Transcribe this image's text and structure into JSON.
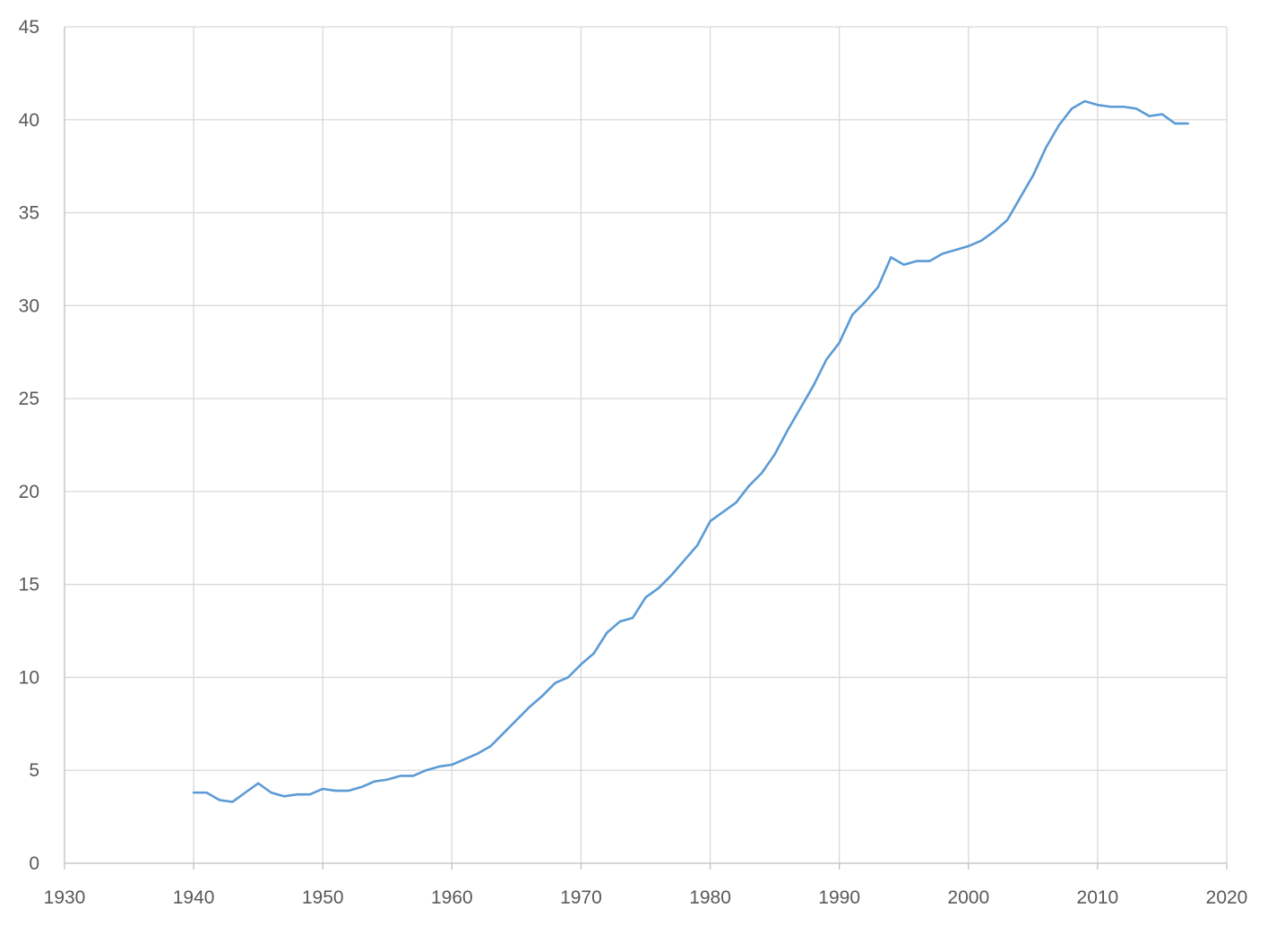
{
  "chart_data": {
    "type": "line",
    "title": "",
    "xlabel": "",
    "ylabel": "",
    "xlim": [
      1930,
      2020
    ],
    "ylim": [
      0,
      45
    ],
    "xticks": [
      1930,
      1940,
      1950,
      1960,
      1970,
      1980,
      1990,
      2000,
      2010,
      2020
    ],
    "yticks": [
      0,
      5,
      10,
      15,
      20,
      25,
      30,
      35,
      40,
      45
    ],
    "grid": true,
    "legend": "none",
    "series": [
      {
        "color": "#5b9bd5",
        "x": [
          1940,
          1941,
          1942,
          1943,
          1944,
          1945,
          1946,
          1947,
          1948,
          1949,
          1950,
          1951,
          1952,
          1953,
          1954,
          1955,
          1956,
          1957,
          1958,
          1959,
          1960,
          1961,
          1962,
          1963,
          1964,
          1965,
          1966,
          1967,
          1968,
          1969,
          1970,
          1971,
          1972,
          1973,
          1974,
          1975,
          1976,
          1977,
          1978,
          1979,
          1980,
          1981,
          1982,
          1983,
          1984,
          1985,
          1986,
          1987,
          1988,
          1989,
          1990,
          1991,
          1992,
          1993,
          1994,
          1995,
          1996,
          1997,
          1998,
          1999,
          2000,
          2001,
          2002,
          2003,
          2004,
          2005,
          2006,
          2007,
          2008,
          2009,
          2010,
          2011,
          2012,
          2013,
          2014,
          2015,
          2016,
          2017
        ],
        "y": [
          3.8,
          3.8,
          3.4,
          3.3,
          3.8,
          4.3,
          3.8,
          3.6,
          3.7,
          3.7,
          4.0,
          3.9,
          3.9,
          4.1,
          4.4,
          4.5,
          4.7,
          4.7,
          5.0,
          5.2,
          5.3,
          5.6,
          5.9,
          6.3,
          7.0,
          7.7,
          8.4,
          9.0,
          9.7,
          10.0,
          10.7,
          11.3,
          12.4,
          13.0,
          13.2,
          14.3,
          14.8,
          15.5,
          16.3,
          17.1,
          18.4,
          18.9,
          19.4,
          20.3,
          21.0,
          22.0,
          23.3,
          24.5,
          25.7,
          27.1,
          28.0,
          29.5,
          30.2,
          31.0,
          32.6,
          32.2,
          32.4,
          32.4,
          32.8,
          33.0,
          33.2,
          33.5,
          34.0,
          34.6,
          35.8,
          37.0,
          38.5,
          39.7,
          40.6,
          41.0,
          40.8,
          40.7,
          40.7,
          40.6,
          40.2,
          40.3,
          39.8,
          39.8
        ]
      }
    ]
  }
}
